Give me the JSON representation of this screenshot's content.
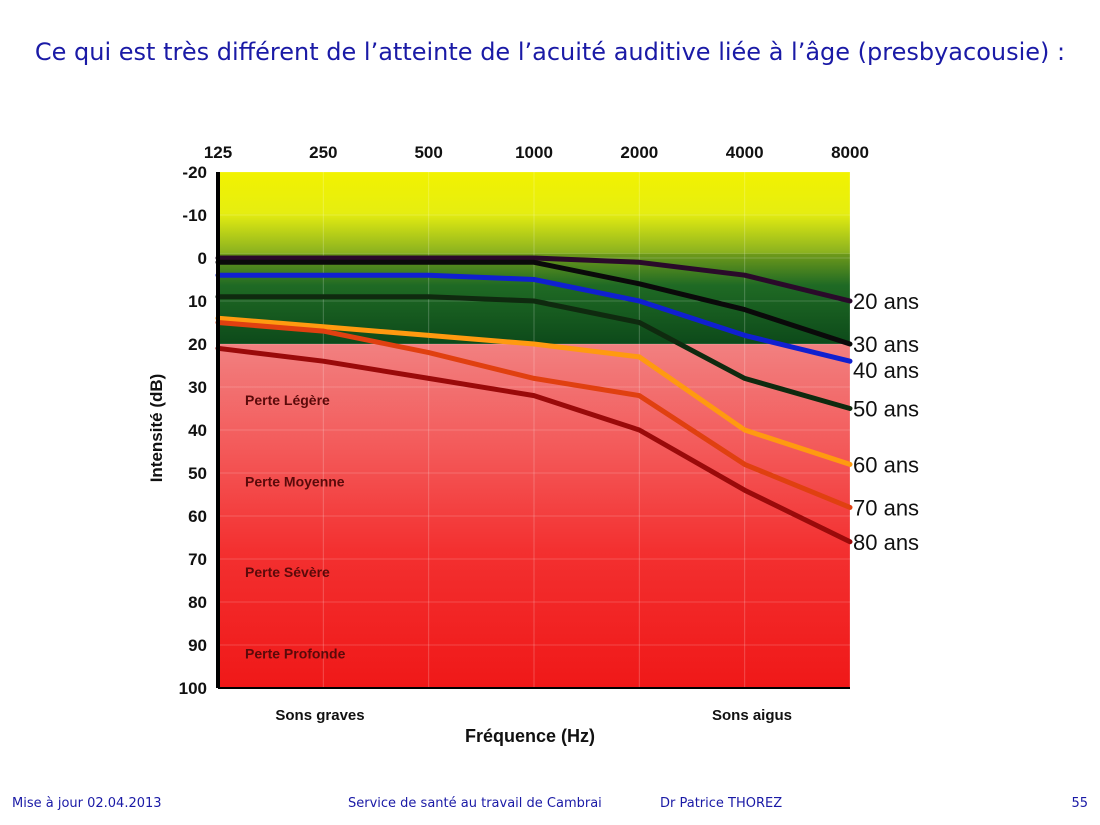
{
  "slide": {
    "title": "Ce qui est très différent de l’atteinte de l’acuité auditive liée à l’âge (presbyacousie) :"
  },
  "footer": {
    "updated": "Mise à jour 02.04.2013",
    "service": "Service de santé au travail de Cambrai",
    "author": "Dr Patrice THOREZ",
    "page": "55"
  },
  "chart_data": {
    "type": "line",
    "x": [
      125,
      250,
      500,
      1000,
      2000,
      4000,
      8000
    ],
    "xscale": "log2",
    "ylabel": "Intensité (dB)",
    "xlabel": "Fréquence (Hz)",
    "ylim": [
      -20,
      100
    ],
    "y_inverted": true,
    "yticks": [
      "-20",
      "-10",
      "0",
      "10",
      "20",
      "30",
      "40",
      "50",
      "60",
      "70",
      "80",
      "90",
      "100"
    ],
    "xticks": [
      "125",
      "250",
      "500",
      "1000",
      "2000",
      "4000",
      "8000"
    ],
    "x_annotations": {
      "low": "Sons graves",
      "high": "Sons aigus"
    },
    "zones": [
      {
        "label": "Perte Légère",
        "y": 33
      },
      {
        "label": "Perte Moyenne",
        "y": 52
      },
      {
        "label": "Perte Sévère",
        "y": 73
      },
      {
        "label": "Perte Profonde",
        "y": 92
      }
    ],
    "grid": true,
    "series": [
      {
        "name": "20 ans",
        "color": "#2a0a2a",
        "values": [
          0,
          0,
          0,
          0,
          1,
          4,
          10
        ]
      },
      {
        "name": "30 ans",
        "color": "#0a0a0a",
        "values": [
          1,
          1,
          1,
          1,
          6,
          12,
          20
        ]
      },
      {
        "name": "40 ans",
        "color": "#1020d0",
        "values": [
          4,
          4,
          4,
          5,
          10,
          18,
          24
        ]
      },
      {
        "name": "50 ans",
        "color": "#0f2a0f",
        "values": [
          9,
          9,
          9,
          10,
          15,
          28,
          35
        ]
      },
      {
        "name": "60 ans",
        "color": "#ff9a10",
        "values": [
          14,
          16,
          18,
          20,
          23,
          40,
          48
        ]
      },
      {
        "name": "70 ans",
        "color": "#e04010",
        "values": [
          15,
          17,
          22,
          28,
          32,
          48,
          58
        ]
      },
      {
        "name": "80 ans",
        "color": "#9a0a0a",
        "values": [
          21,
          24,
          28,
          32,
          40,
          54,
          66
        ]
      }
    ]
  }
}
